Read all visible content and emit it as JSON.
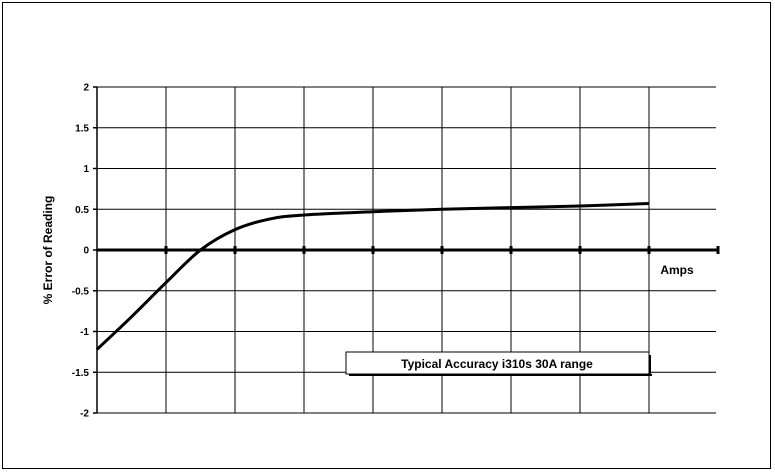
{
  "chart_data": {
    "type": "line",
    "title": "",
    "xlabel": "Amps",
    "ylabel": "% Error of Reading",
    "annotation": "Typical Accuracy i310s 30A range",
    "ylim": [
      -2,
      2
    ],
    "yticks": [
      2,
      1.5,
      1,
      0.5,
      0,
      -0.5,
      -1,
      -1.5,
      -2
    ],
    "ytick_labels": [
      "2",
      "1.5",
      "1",
      "0.5",
      "0",
      "-0.5",
      "-1",
      "-1.5",
      "-2"
    ],
    "xlim": [
      0,
      9
    ],
    "grid": true,
    "series": [
      {
        "x": [
          0,
          0.5,
          1,
          1.5,
          2,
          2.5,
          3,
          4,
          5,
          6,
          7,
          8
        ],
        "values": [
          -1.22,
          -0.82,
          -0.4,
          0.0,
          0.25,
          0.38,
          0.43,
          0.47,
          0.5,
          0.52,
          0.54,
          0.57
        ]
      }
    ]
  }
}
